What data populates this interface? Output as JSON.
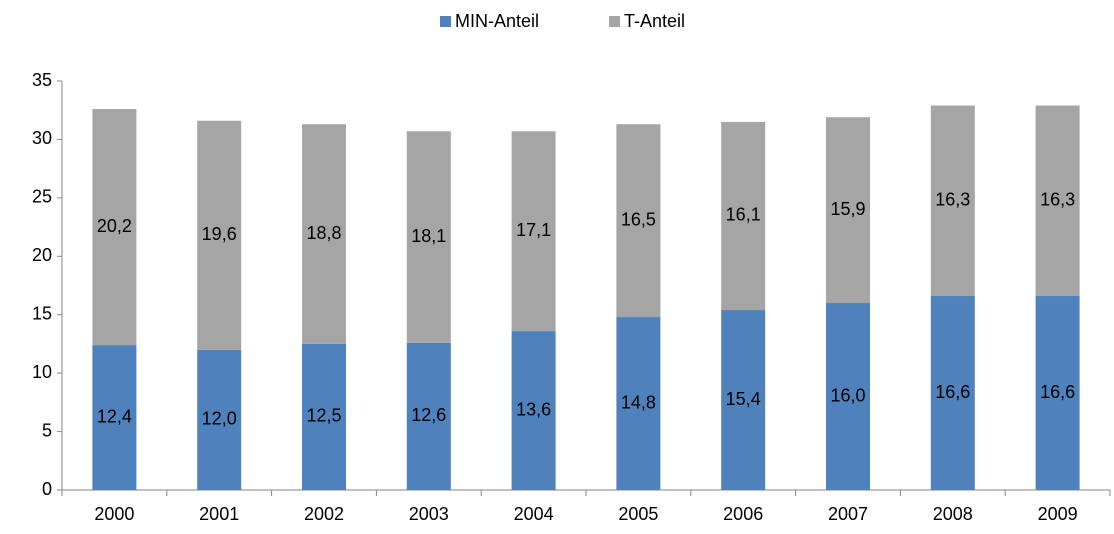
{
  "chart_data": {
    "type": "stacked_bar",
    "categories": [
      "2000",
      "2001",
      "2002",
      "2003",
      "2004",
      "2005",
      "2006",
      "2007",
      "2008",
      "2009"
    ],
    "series": [
      {
        "name": "MIN-Anteil",
        "color": "#4f81bd",
        "values": [
          12.4,
          12.0,
          12.5,
          12.6,
          13.6,
          14.8,
          15.4,
          16.0,
          16.6,
          16.6
        ],
        "value_labels": [
          "12,4",
          "12,0",
          "12,5",
          "12,6",
          "13,6",
          "14,8",
          "15,4",
          "16,0",
          "16,6",
          "16,6"
        ]
      },
      {
        "name": "T-Anteil",
        "color": "#a5a5a5",
        "values": [
          20.2,
          19.6,
          18.8,
          18.1,
          17.1,
          16.5,
          16.1,
          15.9,
          16.3,
          16.3
        ],
        "value_labels": [
          "20,2",
          "19,6",
          "18,8",
          "18,1",
          "17,1",
          "16,5",
          "16,1",
          "15,9",
          "16,3",
          "16,3"
        ]
      }
    ],
    "ylim": [
      0,
      35
    ],
    "yticks": [
      0,
      5,
      10,
      15,
      20,
      25,
      30,
      35
    ],
    "grid": false,
    "legend": "top"
  }
}
